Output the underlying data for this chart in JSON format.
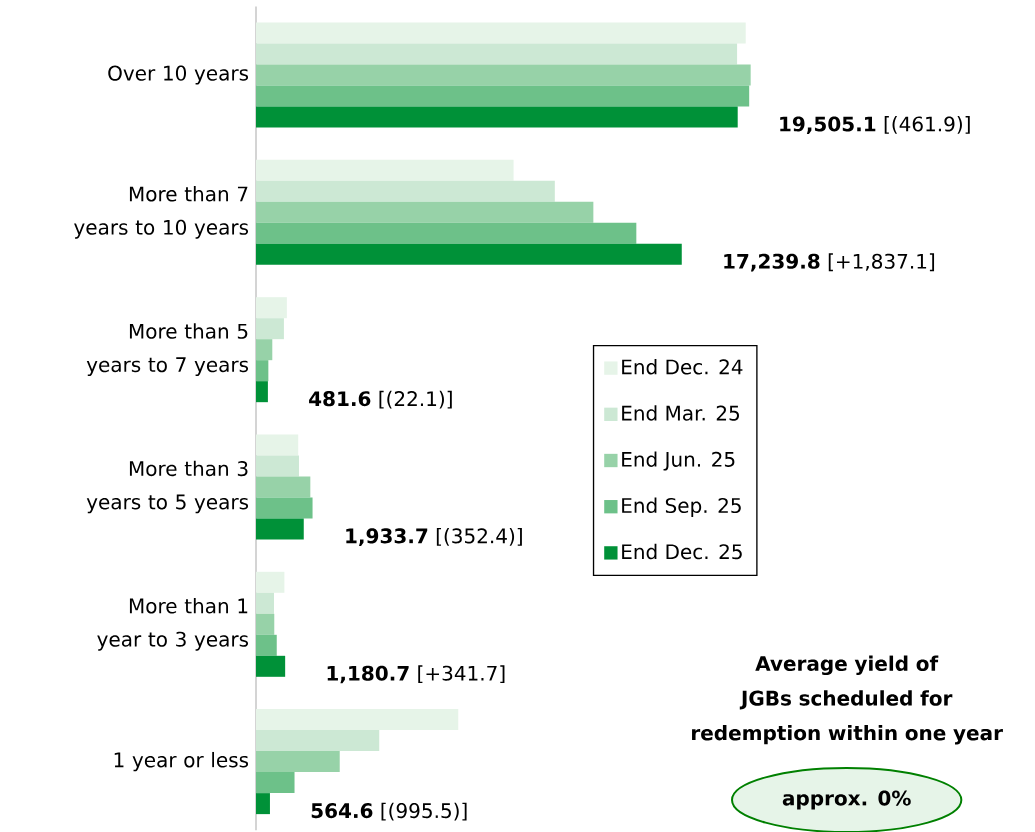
{
  "chart_data": {
    "type": "bar",
    "orientation": "horizontal",
    "categories": [
      "Over 10 years",
      "More than 7 years to 10 years",
      "More than 5 years to 7 years",
      "More than 3 years to 5 years",
      "More than 1 year to 3 years",
      "1 year or less"
    ],
    "series": [
      {
        "name": "End Dec. 24",
        "color": "#e6f4e8",
        "values": [
          19830,
          10430,
          1250,
          1710,
          1150,
          8190
        ]
      },
      {
        "name": "End Mar. 25",
        "color": "#cce8d4",
        "values": [
          19480,
          12100,
          1130,
          1740,
          730,
          4990
        ]
      },
      {
        "name": "End Jun. 25",
        "color": "#97d2a8",
        "values": [
          20030,
          13660,
          660,
          2200,
          740,
          3390
        ]
      },
      {
        "name": "End Sep. 25",
        "color": "#6dc189",
        "values": [
          19970,
          15400,
          500,
          2290,
          840,
          1560
        ]
      },
      {
        "name": "End Dec. 25",
        "color": "#009138",
        "values": [
          19505.1,
          17239.8,
          481.6,
          1933.7,
          1180.7,
          564.6
        ],
        "value_labels": [
          "**19,505.1** [(461.9)]",
          "**17,239.8** [+1,837.1]",
          "**481.6** [(22.1)]",
          "**1,933.7** [(352.4)]",
          "**1,180.7** [+341.7]",
          "**564.6** [(995.5)]"
        ]
      }
    ],
    "legend": "right",
    "tick_labels": "y",
    "annotations": [
      "Average yield of JGBs scheduled for redemption within one year",
      "approx. 0%"
    ]
  }
}
